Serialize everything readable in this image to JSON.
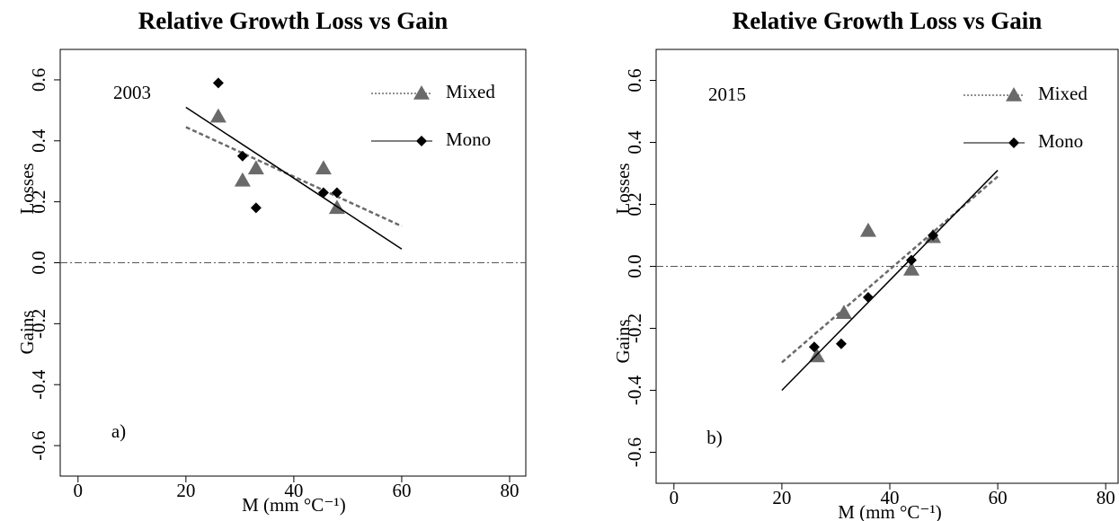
{
  "chart_data": [
    {
      "type": "scatter",
      "title": "Relative Growth Loss vs Gain",
      "xlabel": "M (mm °C⁻¹)",
      "ylabel_top": "Losses",
      "ylabel_bottom": "Gains",
      "year": "2003",
      "panel": "a)",
      "xlim": [
        -3.3,
        83
      ],
      "ylim": [
        -0.7,
        0.7
      ],
      "xticks": [
        0,
        20,
        40,
        60,
        80
      ],
      "yticks": [
        0.6,
        0.4,
        0.2,
        {
          "value": 0,
          "label": "0.0"
        },
        -0.2,
        -0.4,
        -0.6
      ],
      "hline": 0,
      "series": [
        {
          "name": "Mixed",
          "color": "#6a6a6a",
          "marker": "triangle",
          "x": [
            26,
            30.5,
            33,
            45.5,
            48
          ],
          "values": [
            0.48,
            0.27,
            0.31,
            0.31,
            0.18
          ],
          "trend": {
            "x": [
              20,
              60
            ],
            "y": [
              0.445,
              0.12
            ],
            "dash": true
          }
        },
        {
          "name": "Mono",
          "color": "#000000",
          "marker": "diamond",
          "x": [
            26,
            30.5,
            33,
            45.5,
            48
          ],
          "values": [
            0.59,
            0.35,
            0.18,
            0.23,
            0.23
          ],
          "trend": {
            "x": [
              20,
              60
            ],
            "y": [
              0.51,
              0.045
            ],
            "dash": false
          }
        }
      ]
    },
    {
      "type": "scatter",
      "title": "Relative Growth Loss vs Gain",
      "xlabel": "M (mm °C⁻¹)",
      "ylabel_top": "Losses",
      "ylabel_bottom": "Gains",
      "year": "2015",
      "panel": "b)",
      "xlim": [
        -3.3,
        82.3
      ],
      "ylim": [
        -0.7,
        0.7
      ],
      "xticks": [
        0,
        20,
        40,
        60,
        80
      ],
      "yticks": [
        0.6,
        0.4,
        0.2,
        {
          "value": 0,
          "label": "0.0"
        },
        -0.2,
        -0.4,
        -0.6
      ],
      "hline": 0,
      "series": [
        {
          "name": "Mixed",
          "color": "#6a6a6a",
          "marker": "triangle",
          "x": [
            26.5,
            31.5,
            36,
            44,
            48
          ],
          "values": [
            -0.29,
            -0.15,
            0.115,
            -0.01,
            0.095
          ],
          "trend": {
            "x": [
              20,
              60
            ],
            "y": [
              -0.31,
              0.29
            ],
            "dash": true
          }
        },
        {
          "name": "Mono",
          "color": "#000000",
          "marker": "diamond",
          "x": [
            26,
            31,
            36,
            44,
            48
          ],
          "values": [
            -0.26,
            -0.25,
            -0.1,
            0.02,
            0.1
          ],
          "trend": {
            "x": [
              20,
              60
            ],
            "y": [
              -0.4,
              0.31
            ],
            "dash": false
          }
        }
      ]
    }
  ]
}
